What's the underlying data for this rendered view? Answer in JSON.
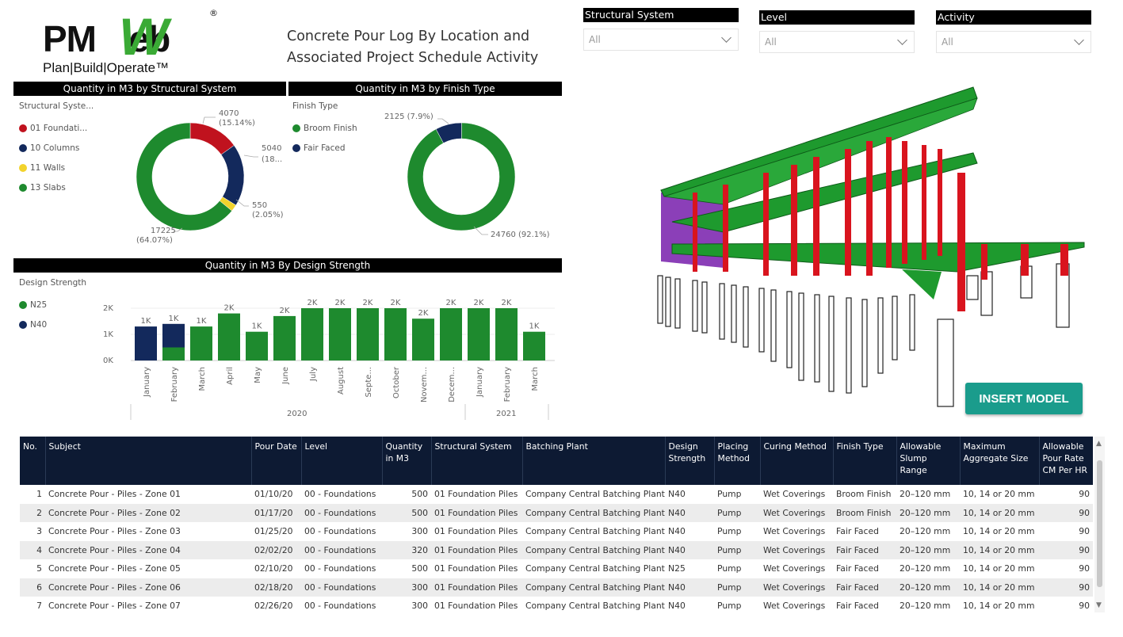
{
  "logo": {
    "main": "PMWeb",
    "w": "W",
    "sub": "Plan|Build|Operate™",
    "reg": "®"
  },
  "title": {
    "line1": "Concrete Pour Log By Location and",
    "line2": "Associated Project Schedule Activity"
  },
  "slicers": [
    {
      "label": "Structural System",
      "value": "All"
    },
    {
      "label": "Level",
      "value": "All"
    },
    {
      "label": "Activity",
      "value": "All"
    }
  ],
  "charts": {
    "structural": {
      "bar_title": "Quantity in M3 by Structural System",
      "legend_title": "Structural Syste...",
      "legend": [
        {
          "name": "01 Foundati...",
          "color": "#c0121e"
        },
        {
          "name": "10 Columns",
          "color": "#13295c"
        },
        {
          "name": "11 Walls",
          "color": "#f2d32c"
        },
        {
          "name": "13 Slabs",
          "color": "#1e8a2e"
        }
      ],
      "labels": {
        "a1": "4070",
        "a2": "(15.14%)",
        "b1": "5040",
        "b2": "(18...",
        "c1": "550",
        "c2": "(2.05%)",
        "d1": "17225",
        "d2": "(64.07%)"
      }
    },
    "finish": {
      "bar_title": "Quantity in M3 by Finish Type",
      "legend_title": "Finish Type",
      "legend": [
        {
          "name": "Broom Finish",
          "color": "#1e8a2e"
        },
        {
          "name": "Fair Faced",
          "color": "#13295c"
        }
      ],
      "labels": {
        "a": "2125 (7.9%)",
        "b": "24760 (92.1%)"
      }
    },
    "strength": {
      "bar_title": "Quantity in M3 By Design Strength",
      "legend_title": "Design Strength",
      "legend": [
        {
          "name": "N25",
          "color": "#1e8a2e"
        },
        {
          "name": "N40",
          "color": "#13295c"
        }
      ],
      "y_ticks": [
        "2K",
        "1K",
        "0K"
      ],
      "years": [
        "2020",
        "2021"
      ]
    }
  },
  "chart_data": [
    {
      "type": "pie",
      "title": "Quantity in M3 by Structural System",
      "categories": [
        "01 Foundati...",
        "10 Columns",
        "11 Walls",
        "13 Slabs"
      ],
      "values": [
        4070,
        5040,
        550,
        17225
      ],
      "colors": [
        "#c0121e",
        "#13295c",
        "#f2d32c",
        "#1e8a2e"
      ]
    },
    {
      "type": "pie",
      "title": "Quantity in M3 by Finish Type",
      "categories": [
        "Fair Faced",
        "Broom Finish"
      ],
      "values": [
        2125,
        24760
      ],
      "colors": [
        "#13295c",
        "#1e8a2e"
      ]
    },
    {
      "type": "bar",
      "title": "Quantity in M3 By Design Strength",
      "categories": [
        "January",
        "February",
        "March",
        "April",
        "May",
        "June",
        "July",
        "August",
        "Septe...",
        "October",
        "Novem...",
        "Decem...",
        "January",
        "February",
        "March"
      ],
      "series": [
        {
          "name": "N25",
          "values": [
            0,
            500,
            1300,
            1800,
            1100,
            1700,
            2000,
            2000,
            2000,
            2000,
            1600,
            2000,
            2000,
            2000,
            1100
          ]
        },
        {
          "name": "N40",
          "values": [
            1300,
            900,
            0,
            0,
            0,
            0,
            0,
            0,
            0,
            0,
            0,
            0,
            0,
            0,
            0
          ]
        }
      ],
      "data_labels": [
        "1K",
        "1K",
        "1K",
        "2K",
        "1K",
        "2K",
        "2K",
        "2K",
        "2K",
        "2K",
        "2K",
        "2K",
        "2K",
        "2K",
        "1K"
      ],
      "ylim": [
        0,
        2000
      ]
    }
  ],
  "insert_button": "INSERT MODEL",
  "table": {
    "headers": [
      "No.",
      "Subject",
      "Pour Date",
      "Level",
      "Quantity in M3",
      "Structural System",
      "Batching Plant",
      "Design Strength",
      "Placing Method",
      "Curing Method",
      "Finish Type",
      "Allowable Slump Range",
      "Maximum Aggregate Size",
      "Allowable Pour Rate CM Per HR"
    ],
    "rows": [
      [
        "1",
        "Concrete Pour - Piles - Zone 01",
        "01/10/20",
        "00 - Foundations",
        "500",
        "01 Foundation Piles",
        "Company Central Batching Plant",
        "N40",
        "Pump",
        "Wet Coverings",
        "Broom Finish",
        "20–120 mm",
        "10, 14 or 20 mm",
        "90"
      ],
      [
        "2",
        "Concrete Pour - Piles - Zone 02",
        "01/17/20",
        "00 - Foundations",
        "500",
        "01 Foundation Piles",
        "Company Central Batching Plant",
        "N40",
        "Pump",
        "Wet Coverings",
        "Broom Finish",
        "20–120 mm",
        "10, 14 or 20 mm",
        "90"
      ],
      [
        "3",
        "Concrete Pour - Piles - Zone 03",
        "01/25/20",
        "00 - Foundations",
        "300",
        "01 Foundation Piles",
        "Company Central Batching Plant",
        "N40",
        "Pump",
        "Wet Coverings",
        "Fair Faced",
        "20–120 mm",
        "10, 14 or 20 mm",
        "90"
      ],
      [
        "4",
        "Concrete Pour - Piles - Zone 04",
        "02/02/20",
        "00 - Foundations",
        "320",
        "01 Foundation Piles",
        "Company Central Batching Plant",
        "N40",
        "Pump",
        "Wet Coverings",
        "Fair Faced",
        "20–120 mm",
        "10, 14 or 20 mm",
        "90"
      ],
      [
        "5",
        "Concrete Pour - Piles - Zone 05",
        "02/10/20",
        "00 - Foundations",
        "500",
        "01 Foundation Piles",
        "Company Central Batching Plant",
        "N25",
        "Pump",
        "Wet Coverings",
        "Fair Faced",
        "20–120 mm",
        "10, 14 or 20 mm",
        "90"
      ],
      [
        "6",
        "Concrete Pour - Piles - Zone 06",
        "02/18/20",
        "00 - Foundations",
        "300",
        "01 Foundation Piles",
        "Company Central Batching Plant",
        "N40",
        "Pump",
        "Wet Coverings",
        "Fair Faced",
        "20–120 mm",
        "10, 14 or 20 mm",
        "90"
      ],
      [
        "7",
        "Concrete Pour - Piles - Zone 07",
        "02/26/20",
        "00 - Foundations",
        "300",
        "01 Foundation Piles",
        "Company Central Batching Plant",
        "N40",
        "Pump",
        "Wet Coverings",
        "Fair Faced",
        "20–120 mm",
        "10, 14 or 20 mm",
        "90"
      ]
    ]
  }
}
